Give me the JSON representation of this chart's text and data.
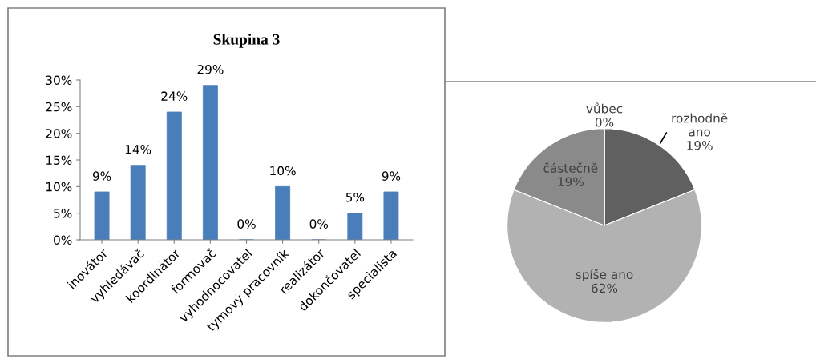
{
  "chart_data": [
    {
      "type": "bar",
      "title": "Skupina 3",
      "categories": [
        "inovátor",
        "vyhledávač",
        "koordinátor",
        "formovač",
        "vyhodnocovatel",
        "týmový pracovník",
        "realizátor",
        "dokončovatel",
        "specialista"
      ],
      "values": [
        9,
        14,
        24,
        29,
        0,
        10,
        0,
        5,
        9
      ],
      "value_labels": [
        "9%",
        "14%",
        "24%",
        "29%",
        "0%",
        "10%",
        "0%",
        "5%",
        "9%"
      ],
      "color": "#4a7ebb",
      "ylim": [
        0,
        30
      ],
      "yticks": [
        {
          "value": 0,
          "label": "0%"
        },
        {
          "value": 5,
          "label": "5%"
        },
        {
          "value": 10,
          "label": "10%"
        },
        {
          "value": 15,
          "label": "15%"
        },
        {
          "value": 20,
          "label": "20%"
        },
        {
          "value": 25,
          "label": "25%"
        },
        {
          "value": 30,
          "label": "30%"
        }
      ],
      "grid": false,
      "legend": false
    },
    {
      "type": "pie",
      "categories": [
        "rozhodně ano",
        "spíše ano",
        "částečně",
        "vůbec"
      ],
      "values": [
        19,
        62,
        19,
        0
      ],
      "value_labels": [
        "19%",
        "62%",
        "19%",
        "0%"
      ],
      "colors": [
        "#606060",
        "#b2b2b2",
        "#8a8a8a",
        "#9a9a9a"
      ],
      "legend": false
    }
  ]
}
